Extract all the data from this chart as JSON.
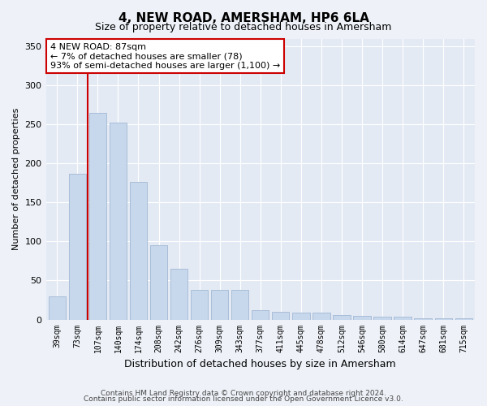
{
  "title": "4, NEW ROAD, AMERSHAM, HP6 6LA",
  "subtitle": "Size of property relative to detached houses in Amersham",
  "xlabel": "Distribution of detached houses by size in Amersham",
  "ylabel": "Number of detached properties",
  "categories": [
    "39sqm",
    "73sqm",
    "107sqm",
    "140sqm",
    "174sqm",
    "208sqm",
    "242sqm",
    "276sqm",
    "309sqm",
    "343sqm",
    "377sqm",
    "411sqm",
    "445sqm",
    "478sqm",
    "512sqm",
    "546sqm",
    "580sqm",
    "614sqm",
    "647sqm",
    "681sqm",
    "715sqm"
  ],
  "values": [
    30,
    187,
    265,
    252,
    176,
    95,
    65,
    38,
    38,
    38,
    12,
    10,
    9,
    9,
    6,
    5,
    4,
    4,
    2,
    2,
    2
  ],
  "bar_color": "#c8d8ec",
  "bar_edge_color": "#a8bdd8",
  "vline_x_index": 1.5,
  "vline_color": "#cc0000",
  "annotation_text": "4 NEW ROAD: 87sqm\n← 7% of detached houses are smaller (78)\n93% of semi-detached houses are larger (1,100) →",
  "annotation_box_facecolor": "#ffffff",
  "annotation_box_edgecolor": "#cc0000",
  "ylim": [
    0,
    360
  ],
  "yticks": [
    0,
    50,
    100,
    150,
    200,
    250,
    300,
    350
  ],
  "footnote1": "Contains HM Land Registry data © Crown copyright and database right 2024.",
  "footnote2": "Contains public sector information licensed under the Open Government Licence v3.0.",
  "bg_color": "#eef2f8",
  "plot_bg_color": "#e4eaf4",
  "grid_color": "#ffffff",
  "title_fontsize": 11,
  "subtitle_fontsize": 9,
  "xlabel_fontsize": 9,
  "ylabel_fontsize": 8,
  "tick_fontsize": 7,
  "annot_fontsize": 8
}
